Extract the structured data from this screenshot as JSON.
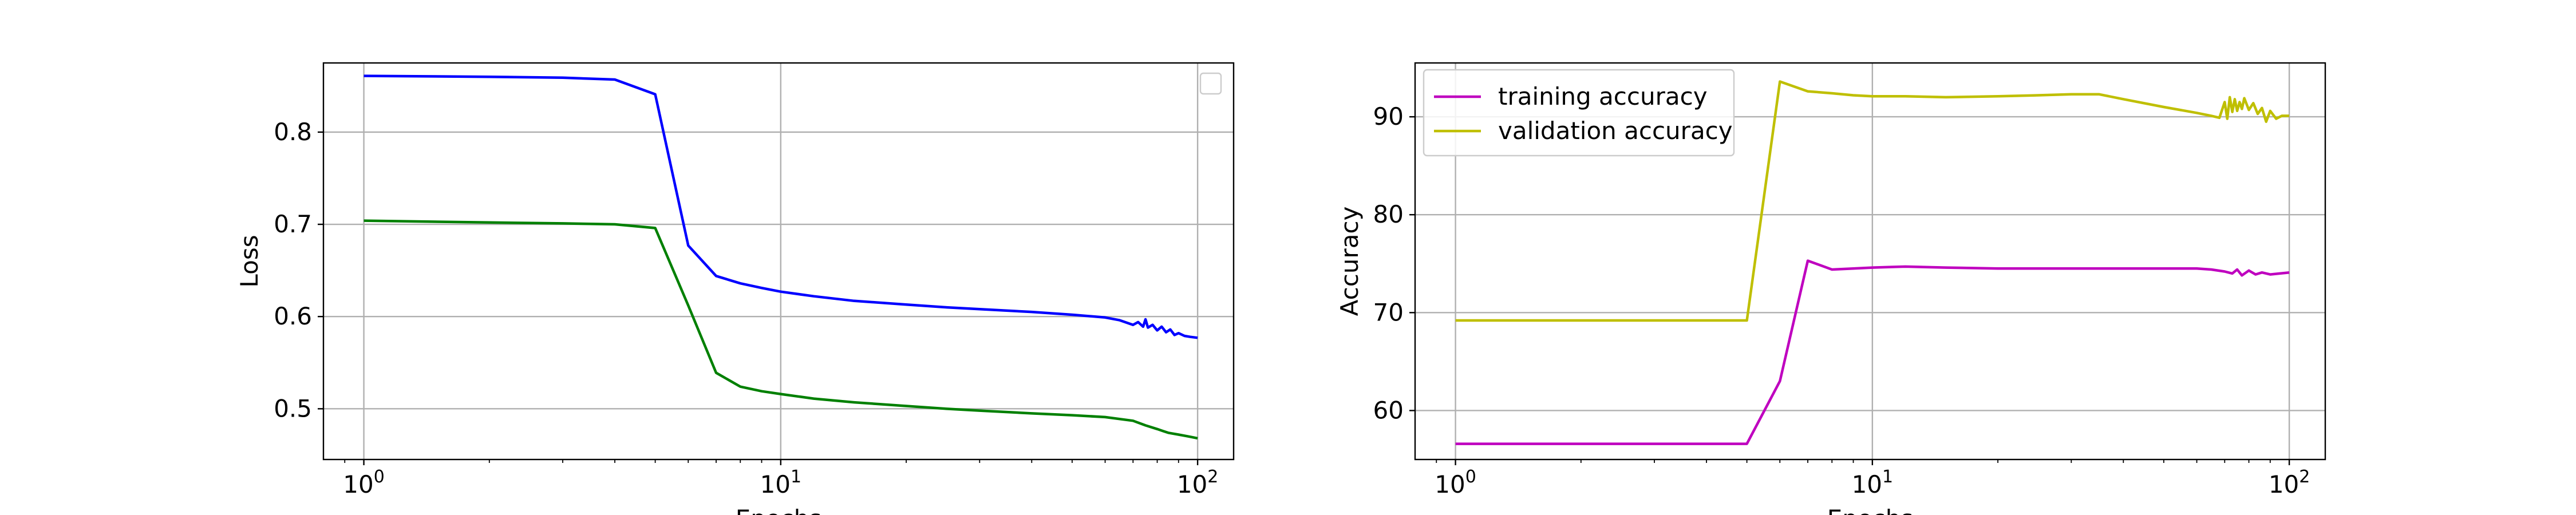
{
  "chart_data": [
    {
      "type": "line",
      "xlabel": "Epochs",
      "ylabel": "Loss",
      "xscale": "log",
      "xlim": [
        0.8,
        122
      ],
      "ylim": [
        0.445,
        0.875
      ],
      "xticks": [
        {
          "base": "10",
          "exp": "0"
        },
        {
          "base": "10",
          "exp": "1"
        },
        {
          "base": "10",
          "exp": "2"
        }
      ],
      "yticks": [
        "0.5",
        "0.6",
        "0.7",
        "0.8"
      ],
      "ytick_values": [
        0.5,
        0.6,
        0.7,
        0.8
      ],
      "grid": true,
      "legend": {
        "position": "upper right",
        "entries": []
      },
      "series": [
        {
          "color": "#0000ff",
          "x": [
            1,
            2,
            3,
            4,
            5,
            6,
            7,
            8,
            9,
            10,
            12,
            15,
            20,
            25,
            30,
            40,
            50,
            60,
            65,
            70,
            72,
            74,
            75,
            76,
            78,
            80,
            82,
            84,
            86,
            88,
            90,
            93,
            96,
            100
          ],
          "y": [
            0.861,
            0.86,
            0.859,
            0.857,
            0.841,
            0.677,
            0.644,
            0.636,
            0.631,
            0.627,
            0.622,
            0.617,
            0.613,
            0.61,
            0.608,
            0.605,
            0.602,
            0.599,
            0.596,
            0.591,
            0.594,
            0.589,
            0.597,
            0.588,
            0.591,
            0.585,
            0.589,
            0.583,
            0.586,
            0.58,
            0.582,
            0.579,
            0.578,
            0.577
          ]
        },
        {
          "color": "#008000",
          "x": [
            1,
            2,
            3,
            4,
            5,
            6,
            7,
            8,
            9,
            10,
            12,
            15,
            20,
            25,
            30,
            40,
            50,
            60,
            70,
            75,
            80,
            85,
            90,
            95,
            100
          ],
          "y": [
            0.704,
            0.702,
            0.701,
            0.7,
            0.696,
            0.612,
            0.539,
            0.524,
            0.519,
            0.516,
            0.511,
            0.507,
            0.503,
            0.5,
            0.498,
            0.495,
            0.493,
            0.491,
            0.487,
            0.482,
            0.478,
            0.474,
            0.472,
            0.47,
            0.468
          ]
        }
      ]
    },
    {
      "type": "line",
      "xlabel": "Epochs",
      "ylabel": "Accuracy",
      "xscale": "log",
      "xlim": [
        0.8,
        122
      ],
      "ylim": [
        55,
        95.5
      ],
      "xticks": [
        {
          "base": "10",
          "exp": "0"
        },
        {
          "base": "10",
          "exp": "1"
        },
        {
          "base": "10",
          "exp": "2"
        }
      ],
      "yticks": [
        "60",
        "70",
        "80",
        "90"
      ],
      "ytick_values": [
        60,
        70,
        80,
        90
      ],
      "grid": true,
      "legend": {
        "position": "upper left"
      },
      "series": [
        {
          "name": "training accuracy",
          "color": "#bf00bf",
          "x": [
            1,
            2,
            3,
            4,
            5,
            6,
            7,
            8,
            9,
            10,
            12,
            15,
            20,
            25,
            30,
            40,
            50,
            60,
            65,
            70,
            73,
            75,
            77,
            80,
            83,
            86,
            90,
            95,
            100
          ],
          "y": [
            56.6,
            56.6,
            56.6,
            56.6,
            56.6,
            63.0,
            75.3,
            74.4,
            74.5,
            74.6,
            74.7,
            74.6,
            74.5,
            74.5,
            74.5,
            74.5,
            74.5,
            74.5,
            74.4,
            74.2,
            74.0,
            74.4,
            73.8,
            74.3,
            73.9,
            74.1,
            73.9,
            74.0,
            74.1
          ]
        },
        {
          "name": "validation accuracy",
          "color": "#bfbf00",
          "x": [
            1,
            2,
            3,
            4,
            5,
            6,
            7,
            8,
            9,
            10,
            12,
            15,
            20,
            25,
            30,
            35,
            40,
            50,
            60,
            65,
            68,
            70,
            71,
            72,
            73,
            74,
            75,
            76,
            77,
            78,
            80,
            82,
            84,
            86,
            88,
            90,
            93,
            96,
            100
          ],
          "y": [
            69.2,
            69.2,
            69.2,
            69.2,
            69.2,
            93.6,
            92.6,
            92.4,
            92.2,
            92.1,
            92.1,
            92.0,
            92.1,
            92.2,
            92.3,
            92.3,
            91.8,
            91.0,
            90.4,
            90.1,
            89.9,
            91.5,
            89.8,
            92.0,
            90.5,
            91.8,
            90.6,
            91.5,
            90.8,
            91.9,
            90.7,
            91.4,
            90.3,
            90.9,
            89.5,
            90.6,
            89.8,
            90.1,
            90.1
          ]
        }
      ]
    }
  ]
}
